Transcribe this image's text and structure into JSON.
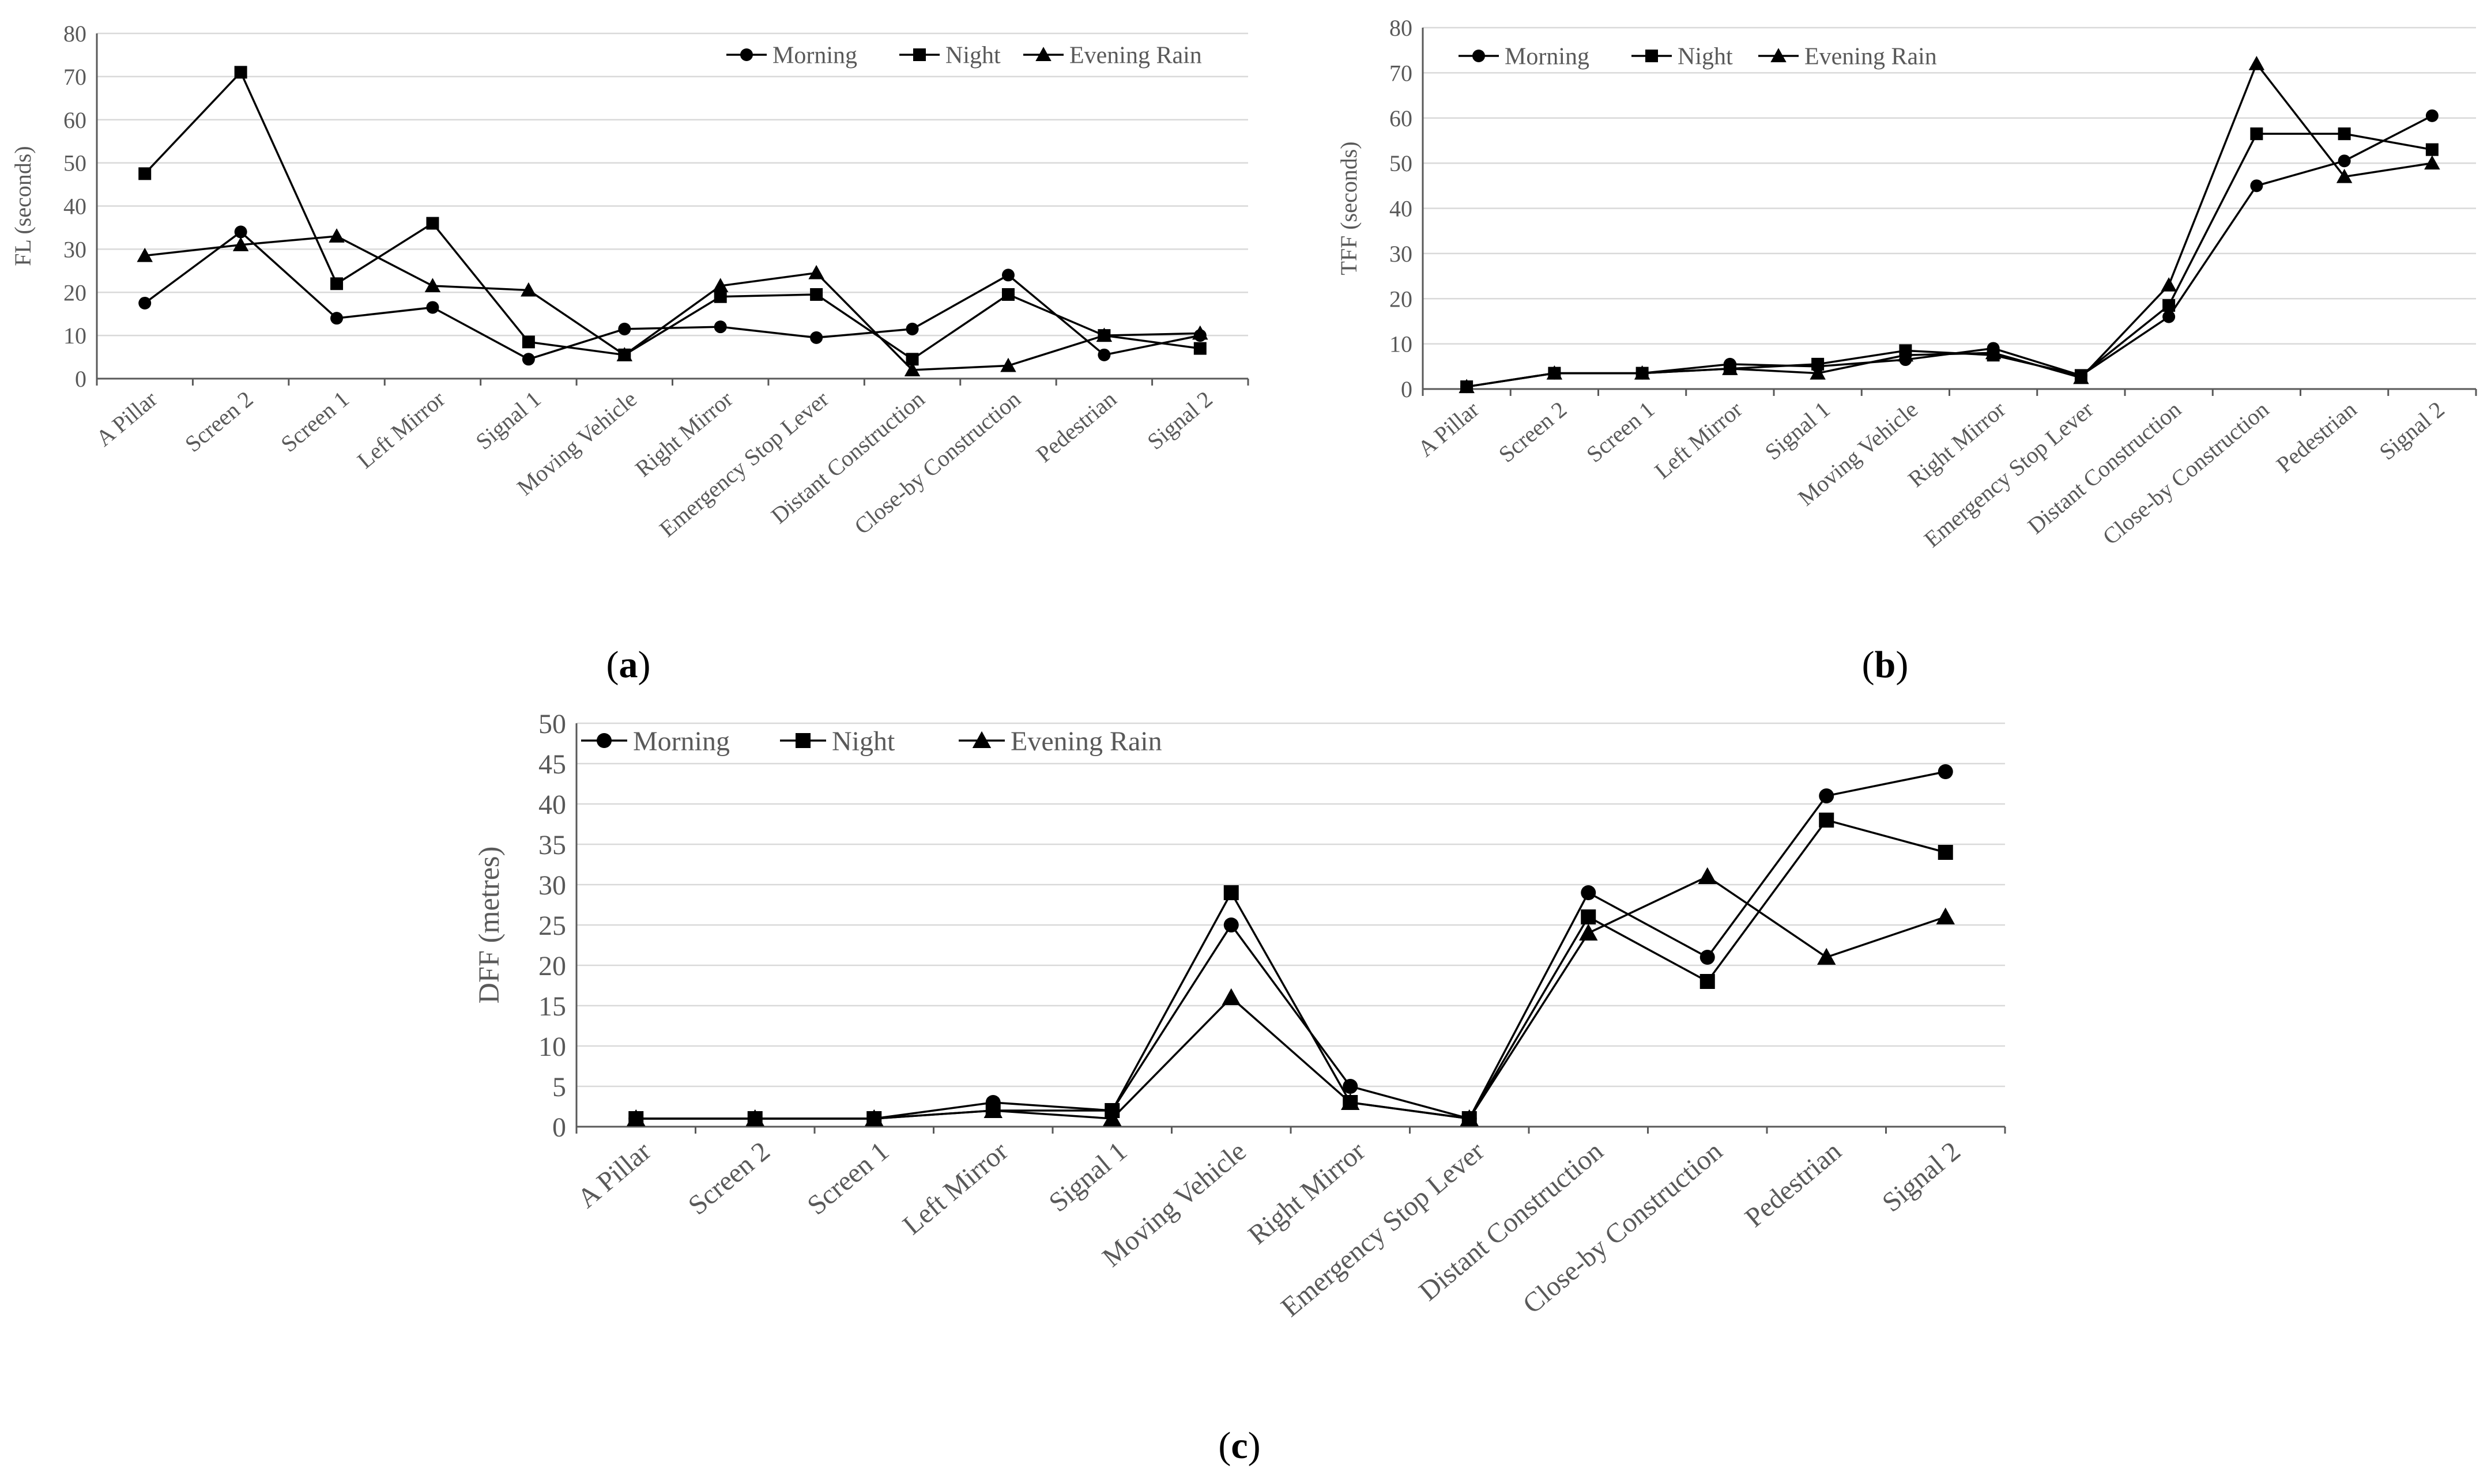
{
  "figure_labels": [
    "(a)",
    "(b)",
    "(c)"
  ],
  "colors": {
    "line": "#000000",
    "grid": "#d9d9d9",
    "axis": "#595959",
    "text": "#595959"
  },
  "chart_data": [
    {
      "id": "a",
      "type": "line",
      "caption": "(a)",
      "ylabel": "FL (seconds)",
      "xlabel": "",
      "ylim": [
        0,
        80
      ],
      "yticks": [
        0,
        10,
        20,
        30,
        40,
        50,
        60,
        70,
        80
      ],
      "grid": true,
      "legend_position": "top-right",
      "categories": [
        "A Pillar",
        "Screen 2",
        "Screen 1",
        "Left Mirror",
        "Signal 1",
        "Moving Vehicle",
        "Right Mirror",
        "Emergency Stop Lever",
        "Distant Construction",
        "Close-by Construction",
        "Pedestrian",
        "Signal 2"
      ],
      "series": [
        {
          "name": "Morning",
          "marker": "circle",
          "values": [
            17.5,
            34,
            14,
            16.5,
            4.5,
            11.5,
            12,
            9.5,
            11.5,
            24,
            5.5,
            10
          ]
        },
        {
          "name": "Night",
          "marker": "square",
          "values": [
            47.5,
            71,
            22,
            36,
            8.5,
            5.5,
            19,
            19.5,
            4.5,
            19.5,
            10,
            7
          ]
        },
        {
          "name": "Evening Rain",
          "marker": "triangle",
          "values": [
            28.5,
            31,
            33,
            21.5,
            20.5,
            5.5,
            21.5,
            24.5,
            2,
            3,
            10,
            10.5
          ]
        }
      ]
    },
    {
      "id": "b",
      "type": "line",
      "caption": "(b)",
      "ylabel": "TFF (seconds)",
      "xlabel": "",
      "ylim": [
        0,
        80
      ],
      "yticks": [
        0,
        10,
        20,
        30,
        40,
        50,
        60,
        70,
        80
      ],
      "grid": true,
      "legend_position": "top-left",
      "categories": [
        "A Pillar",
        "Screen 2",
        "Screen 1",
        "Left Mirror",
        "Signal 1",
        "Moving Vehicle",
        "Right Mirror",
        "Emergency Stop Lever",
        "Distant Construction",
        "Close-by Construction",
        "Pedestrian",
        "Signal 2"
      ],
      "series": [
        {
          "name": "Morning",
          "marker": "circle",
          "values": [
            0.5,
            3.5,
            3.5,
            5.5,
            5,
            6.5,
            9,
            3,
            16,
            45,
            50.5,
            60.5
          ]
        },
        {
          "name": "Night",
          "marker": "square",
          "values": [
            0.5,
            3.5,
            3.5,
            4.5,
            5.5,
            8.5,
            7.5,
            3,
            18.5,
            56.5,
            56.5,
            53
          ]
        },
        {
          "name": "Evening Rain",
          "marker": "triangle",
          "values": [
            0.5,
            3.5,
            3.5,
            4.5,
            3.5,
            7.5,
            8,
            2.5,
            23,
            72,
            47,
            50
          ]
        }
      ]
    },
    {
      "id": "c",
      "type": "line",
      "caption": "(c)",
      "ylabel": "DFF (metres)",
      "xlabel": "",
      "ylim": [
        0,
        50
      ],
      "yticks": [
        0,
        5,
        10,
        15,
        20,
        25,
        30,
        35,
        40,
        45,
        50
      ],
      "grid": true,
      "legend_position": "top-left",
      "categories": [
        "A Pillar",
        "Screen 2",
        "Screen 1",
        "Left Mirror",
        "Signal 1",
        "Moving Vehicle",
        "Right Mirror",
        "Emergency Stop Lever",
        "Distant Construction",
        "Close-by Construction",
        "Pedestrian",
        "Signal 2"
      ],
      "series": [
        {
          "name": "Morning",
          "marker": "circle",
          "values": [
            1,
            1,
            1,
            3,
            2,
            25,
            5,
            1,
            29,
            21,
            41,
            44
          ]
        },
        {
          "name": "Night",
          "marker": "square",
          "values": [
            1,
            1,
            1,
            2,
            2,
            29,
            3,
            1,
            26,
            18,
            38,
            34
          ]
        },
        {
          "name": "Evening Rain",
          "marker": "triangle",
          "values": [
            1,
            1,
            1,
            2,
            1,
            16,
            3,
            1,
            24,
            31,
            21,
            26
          ]
        }
      ]
    }
  ]
}
